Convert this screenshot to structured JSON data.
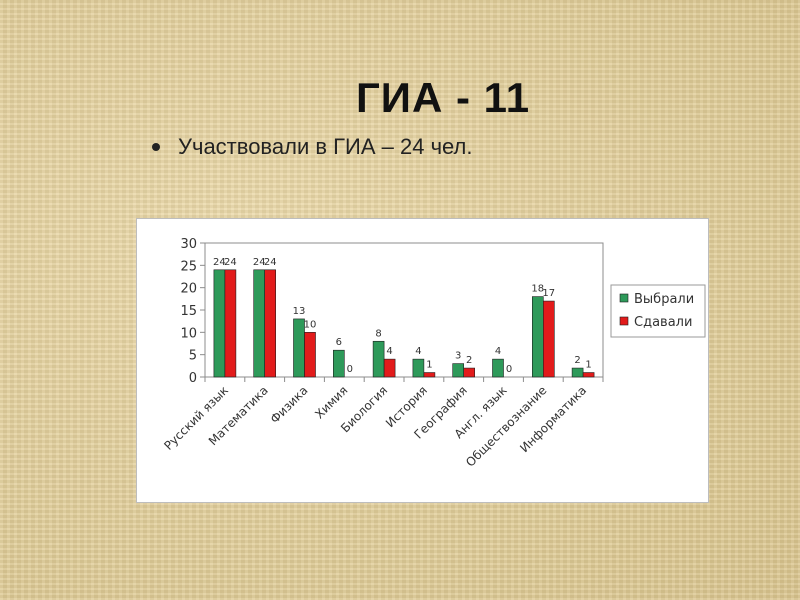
{
  "slide": {
    "title": "ГИА - 11",
    "bullet": "Участвовали в ГИА – 24 чел."
  },
  "chart_data": {
    "type": "bar",
    "categories": [
      "Русский язык",
      "Математика",
      "Физика",
      "Химия",
      "Биология",
      "История",
      "География",
      "Англ. язык",
      "Обществознание",
      "Информатика"
    ],
    "series": [
      {
        "name": "Выбрали",
        "values": [
          24,
          24,
          13,
          6,
          8,
          4,
          3,
          4,
          18,
          2
        ],
        "color": "#2e9a5a"
      },
      {
        "name": "Сдавали",
        "values": [
          24,
          24,
          10,
          0,
          4,
          1,
          2,
          0,
          17,
          1
        ],
        "color": "#e21b1b"
      }
    ],
    "ylim": [
      0,
      30
    ],
    "yticks": [
      0,
      5,
      10,
      15,
      20,
      25,
      30
    ],
    "grid": false,
    "legend_position": "right",
    "data_labels": true,
    "title": "",
    "xlabel": "",
    "ylabel": ""
  }
}
